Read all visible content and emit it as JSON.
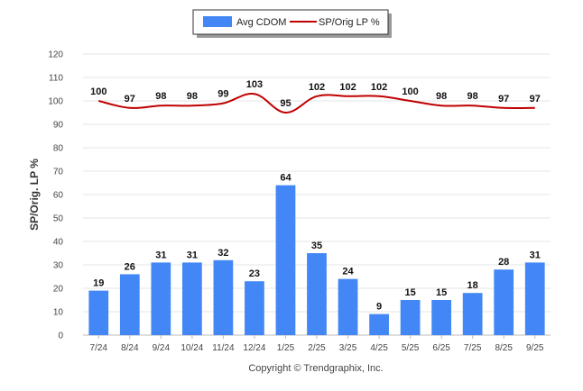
{
  "chart_data": {
    "type": "bar",
    "categories": [
      "7/24",
      "8/24",
      "9/24",
      "10/24",
      "11/24",
      "12/24",
      "1/25",
      "2/25",
      "3/25",
      "4/25",
      "5/25",
      "6/25",
      "7/25",
      "8/25",
      "9/25"
    ],
    "series": [
      {
        "name": "Avg CDOM",
        "kind": "bar",
        "color": "#4287f5",
        "values": [
          19,
          26,
          31,
          31,
          32,
          23,
          64,
          35,
          24,
          9,
          15,
          15,
          18,
          28,
          31
        ]
      },
      {
        "name": "SP/Orig LP %",
        "kind": "line",
        "color": "#c00000",
        "values": [
          100,
          97,
          98,
          98,
          99,
          103,
          95,
          102,
          102,
          102,
          100,
          98,
          98,
          97,
          97
        ]
      }
    ],
    "ylabel": "SP/Orig. LP %",
    "xlabel": "",
    "ylim": [
      0,
      120
    ],
    "yticks": [
      0,
      10,
      20,
      30,
      40,
      50,
      60,
      70,
      80,
      90,
      100,
      110,
      120
    ],
    "grid": true,
    "legend_position": "top-center"
  },
  "footer": {
    "copyright": "Copyright © Trendgraphix, Inc."
  }
}
